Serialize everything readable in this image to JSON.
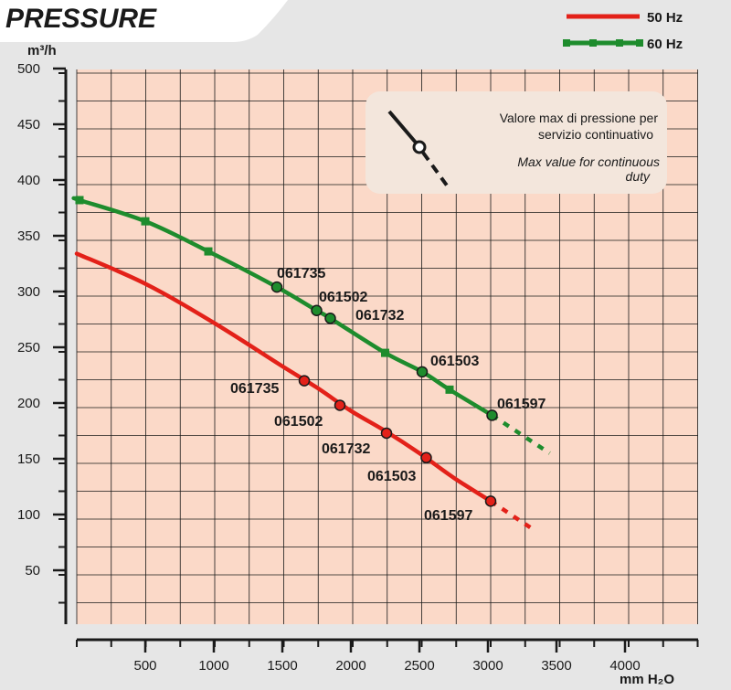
{
  "chart_data": {
    "type": "line",
    "title": "PRESSURE",
    "xlabel": "mm H₂O",
    "ylabel": "m³/h",
    "xlim": [
      0,
      4500
    ],
    "ylim": [
      0,
      500
    ],
    "x_ticks": [
      500,
      1000,
      1500,
      2000,
      2500,
      3000,
      3500,
      4000
    ],
    "y_ticks": [
      50,
      100,
      150,
      200,
      250,
      300,
      350,
      400,
      450,
      500
    ],
    "grid": true,
    "legend_position": "top-right",
    "series": [
      {
        "name": "50 Hz",
        "color": "#e32119",
        "marker": "none",
        "points": [
          [
            0,
            334
          ],
          [
            500,
            307
          ],
          [
            1000,
            272
          ],
          [
            1500,
            233
          ],
          [
            1750,
            214
          ],
          [
            2000,
            193
          ],
          [
            2250,
            175
          ],
          [
            2500,
            155
          ],
          [
            2750,
            133
          ],
          [
            3020,
            112
          ]
        ],
        "dashed_points": [
          [
            3020,
            112
          ],
          [
            3350,
            85
          ]
        ],
        "models": [
          {
            "label": "061735",
            "x": 1660,
            "y": 220
          },
          {
            "label": "061502",
            "x": 1920,
            "y": 198
          },
          {
            "label": "061732",
            "x": 2260,
            "y": 173
          },
          {
            "label": "061503",
            "x": 2550,
            "y": 151
          },
          {
            "label": "061597",
            "x": 3020,
            "y": 112
          }
        ]
      },
      {
        "name": "60 Hz",
        "color": "#1e8c2d",
        "marker": "square",
        "points": [
          [
            0,
            383
          ],
          [
            20,
            382
          ],
          [
            500,
            363
          ],
          [
            960,
            336
          ],
          [
            1460,
            304
          ],
          [
            1750,
            283
          ],
          [
            1850,
            276
          ],
          [
            2250,
            245
          ],
          [
            2520,
            228
          ],
          [
            2720,
            212
          ],
          [
            3030,
            189
          ]
        ],
        "dashed_points": [
          [
            3030,
            189
          ],
          [
            3450,
            155
          ]
        ],
        "square_marks": [
          [
            20,
            382
          ],
          [
            500,
            363
          ],
          [
            960,
            336
          ],
          [
            1460,
            304
          ],
          [
            2250,
            245
          ],
          [
            2720,
            212
          ]
        ],
        "models": [
          {
            "label": "061735",
            "x": 1460,
            "y": 304
          },
          {
            "label": "061502",
            "x": 1750,
            "y": 283
          },
          {
            "label": "061732",
            "x": 1850,
            "y": 276
          },
          {
            "label": "061503",
            "x": 2520,
            "y": 228
          },
          {
            "label": "061597",
            "x": 3030,
            "y": 189
          }
        ]
      }
    ],
    "annotation": {
      "line1": "Valore max di pressione per",
      "line2": "servizio continuativo",
      "line3": "Max value for continuous",
      "line4": "duty"
    }
  }
}
